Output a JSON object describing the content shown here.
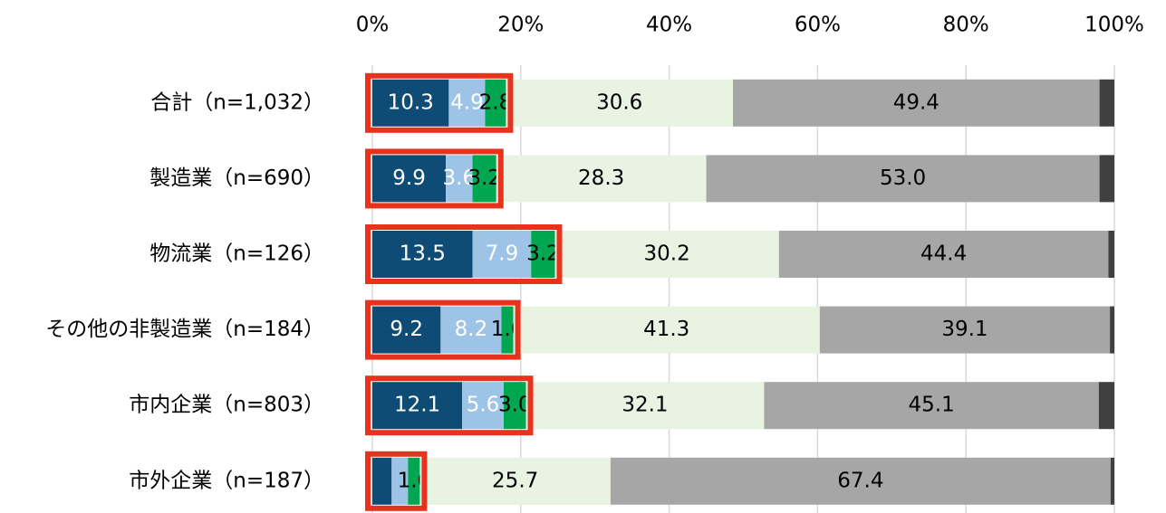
{
  "chart_data": {
    "type": "stacked-bar-horizontal",
    "categories": [
      "合計（n=1,032）",
      "製造業（n=690）",
      "物流業（n=126）",
      "その他の非製造業（n=184）",
      "市内企業（n=803）",
      "市外企業（n=187）"
    ],
    "series": [
      {
        "color": "#0f4c75",
        "label_color": "#ffffff",
        "values": [
          10.3,
          9.9,
          13.5,
          9.2,
          12.1,
          2.6
        ],
        "value_labels": [
          "10.3",
          "9.9",
          "13.5",
          "9.2",
          "12.1",
          null
        ]
      },
      {
        "color": "#9dc3e6",
        "label_color": "#ffffff",
        "values": [
          4.9,
          3.6,
          7.9,
          8.2,
          5.6,
          2.2
        ],
        "value_labels": [
          "4.9",
          "3.6",
          "7.9",
          "8.2",
          "5.6",
          null
        ]
      },
      {
        "color": "#00a650",
        "label_color": "#000000",
        "values": [
          2.8,
          3.2,
          3.2,
          1.6,
          3.0,
          1.6
        ],
        "value_labels": [
          "2.8",
          "3.2",
          "3.2",
          "1.6",
          "3.0",
          "1.6"
        ]
      },
      {
        "color": "#e8f3e2",
        "label_color": "#000000",
        "values": [
          30.6,
          28.3,
          30.2,
          41.3,
          32.1,
          25.7
        ],
        "value_labels": [
          "30.6",
          "28.3",
          "30.2",
          "41.3",
          "32.1",
          "25.7"
        ]
      },
      {
        "color": "#a6a6a6",
        "label_color": "#000000",
        "values": [
          49.4,
          53.0,
          44.4,
          39.1,
          45.1,
          67.4
        ],
        "value_labels": [
          "49.4",
          "53.0",
          "44.4",
          "39.1",
          "45.1",
          "67.4"
        ]
      },
      {
        "color": "#404040",
        "values": [
          2.0,
          2.0,
          0.8,
          0.6,
          2.1,
          0.5
        ]
      }
    ],
    "highlight": {
      "color": "#e8321e",
      "series_count": 3
    },
    "xlim": [
      0,
      100
    ],
    "xticks": [
      {
        "value": 0,
        "label": "0%"
      },
      {
        "value": 20,
        "label": "20%"
      },
      {
        "value": 40,
        "label": "40%"
      },
      {
        "value": 60,
        "label": "60%"
      },
      {
        "value": 80,
        "label": "80%"
      },
      {
        "value": 100,
        "label": "100%"
      }
    ],
    "grid": true
  }
}
